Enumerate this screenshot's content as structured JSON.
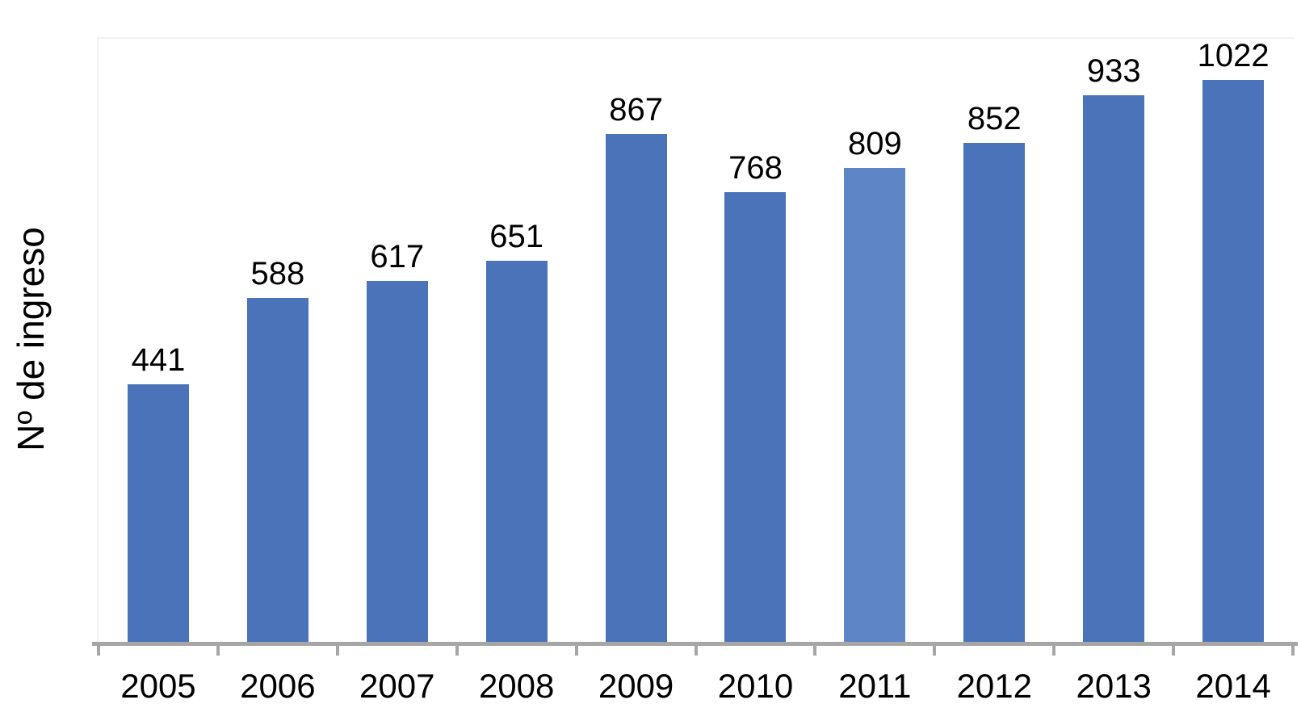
{
  "chart_data": {
    "type": "bar",
    "title": "",
    "xlabel": "",
    "ylabel": "Nº de ingreso",
    "categories": [
      "2005",
      "2006",
      "2007",
      "2008",
      "2009",
      "2010",
      "2011",
      "2012",
      "2013",
      "2014"
    ],
    "values": [
      441,
      588,
      617,
      651,
      867,
      768,
      809,
      852,
      933,
      1022
    ],
    "ylim": [
      0,
      1030
    ],
    "grid": false,
    "legend_position": "none",
    "data_labels": true,
    "highlight_category": "2011",
    "colors": {
      "bar": "#4A73B9",
      "highlight_bar": "#5E85C5",
      "axis_line": "#A6A6A6",
      "plot_border": "#F2F2F2",
      "label_text": "#000000",
      "background": "#FFFFFF"
    }
  }
}
